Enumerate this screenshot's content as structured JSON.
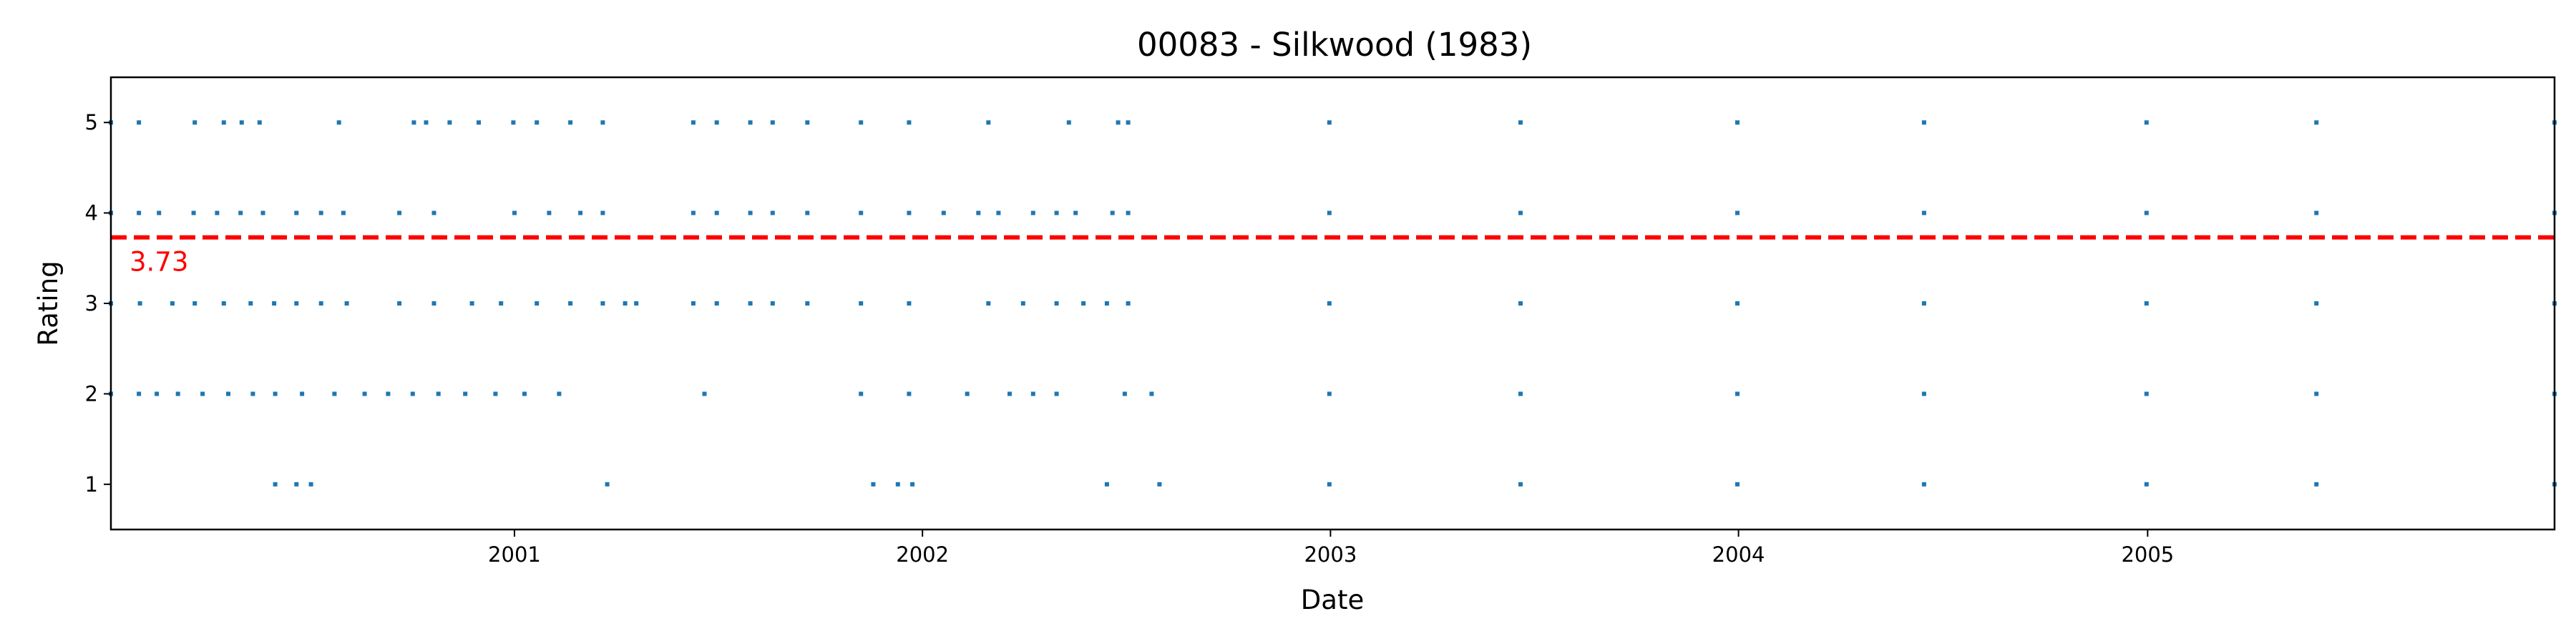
{
  "chart_data": {
    "type": "scatter",
    "title": "00083 - Silkwood (1983)",
    "xlabel": "Date",
    "ylabel": "Rating",
    "xlim": [
      "2000-01-06",
      "2005-12-31"
    ],
    "ylim": [
      0.5,
      5.5
    ],
    "x_ticks": [
      "2001-01-01",
      "2002-01-01",
      "2003-01-01",
      "2004-01-01",
      "2005-01-01"
    ],
    "x_tick_labels": [
      "2001",
      "2002",
      "2003",
      "2004",
      "2005"
    ],
    "y_ticks": [
      1,
      2,
      3,
      4,
      5
    ],
    "y_tick_labels": [
      "1",
      "2",
      "3",
      "4",
      "5"
    ],
    "grid": false,
    "point_color": "#1f77b4",
    "mean": {
      "value": 3.73,
      "label": "3.73",
      "color": "#ff0000",
      "style": "dashed"
    },
    "series": [
      {
        "rating": 5,
        "dates": [
          "2000-01-06",
          "2000-01-31",
          "2000-03-21",
          "2000-04-16",
          "2000-05-02",
          "2000-05-18",
          "2000-07-28",
          "2000-10-03",
          "2000-10-14",
          "2000-11-04",
          "2000-11-30",
          "2000-12-31",
          "2001-01-21",
          "2001-02-20",
          "2001-03-21",
          "2001-06-10",
          "2001-07-01",
          "2001-07-31",
          "2001-08-20",
          "2001-09-20",
          "2001-11-07",
          "2001-12-20",
          "2002-03-01",
          "2002-05-12",
          "2002-06-25",
          "2002-07-04",
          "2002-12-31",
          "2003-06-20",
          "2003-12-31",
          "2004-06-15",
          "2004-12-31",
          "2005-06-01",
          "2005-12-31"
        ]
      },
      {
        "rating": 4,
        "dates": [
          "2000-01-06",
          "2000-01-31",
          "2000-02-18",
          "2000-03-20",
          "2000-04-10",
          "2000-05-01",
          "2000-05-21",
          "2000-06-20",
          "2000-07-12",
          "2000-08-01",
          "2000-09-20",
          "2000-10-21",
          "2001-01-01",
          "2001-02-01",
          "2001-03-01",
          "2001-03-21",
          "2001-06-10",
          "2001-07-01",
          "2001-07-31",
          "2001-08-20",
          "2001-09-20",
          "2001-11-07",
          "2001-12-20",
          "2002-01-20",
          "2002-02-20",
          "2002-03-10",
          "2002-04-10",
          "2002-05-01",
          "2002-05-18",
          "2002-06-20",
          "2002-07-04",
          "2002-12-31",
          "2003-06-20",
          "2003-12-31",
          "2004-06-15",
          "2004-12-31",
          "2005-06-01",
          "2005-12-31"
        ]
      },
      {
        "rating": 3,
        "dates": [
          "2000-01-06",
          "2000-02-01",
          "2000-03-01",
          "2000-03-21",
          "2000-04-16",
          "2000-05-10",
          "2000-05-31",
          "2000-06-20",
          "2000-07-12",
          "2000-08-04",
          "2000-09-20",
          "2000-10-21",
          "2000-11-24",
          "2000-12-20",
          "2001-01-21",
          "2001-02-20",
          "2001-03-21",
          "2001-04-10",
          "2001-04-20",
          "2001-06-10",
          "2001-07-01",
          "2001-07-31",
          "2001-08-20",
          "2001-09-20",
          "2001-11-07",
          "2001-12-20",
          "2002-03-01",
          "2002-04-01",
          "2002-05-01",
          "2002-05-25",
          "2002-06-15",
          "2002-07-04",
          "2002-12-31",
          "2003-06-20",
          "2003-12-31",
          "2004-06-15",
          "2004-12-31",
          "2005-06-01",
          "2005-12-31"
        ]
      },
      {
        "rating": 2,
        "dates": [
          "2000-01-06",
          "2000-01-31",
          "2000-02-16",
          "2000-03-06",
          "2000-03-28",
          "2000-04-20",
          "2000-05-12",
          "2000-06-01",
          "2000-06-25",
          "2000-07-24",
          "2000-08-20",
          "2000-09-10",
          "2000-10-02",
          "2000-10-25",
          "2000-11-18",
          "2000-12-15",
          "2001-01-10",
          "2001-02-10",
          "2001-06-20",
          "2001-11-07",
          "2001-12-20",
          "2002-02-10",
          "2002-03-20",
          "2002-04-10",
          "2002-05-01",
          "2002-07-01",
          "2002-07-25",
          "2002-12-31",
          "2003-06-20",
          "2003-12-31",
          "2004-06-15",
          "2004-12-31",
          "2005-06-01",
          "2005-12-31"
        ]
      },
      {
        "rating": 1,
        "dates": [
          "2000-06-01",
          "2000-06-20",
          "2000-07-03",
          "2001-03-25",
          "2001-11-18",
          "2001-12-10",
          "2001-12-23",
          "2002-06-15",
          "2002-08-01",
          "2002-12-31",
          "2003-06-20",
          "2003-12-31",
          "2004-06-15",
          "2004-12-31",
          "2005-06-01",
          "2005-12-31"
        ]
      }
    ]
  }
}
